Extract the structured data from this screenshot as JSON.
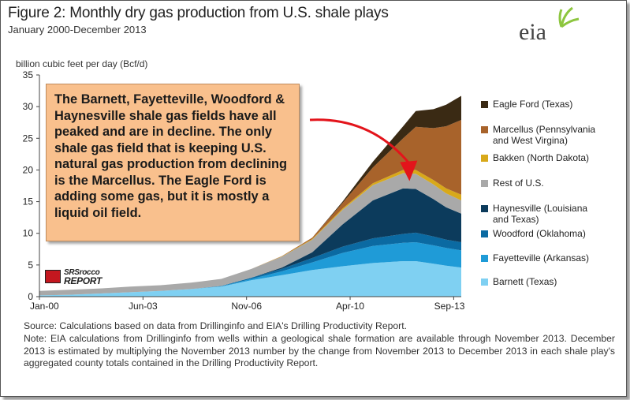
{
  "header": {
    "title": "Figure 2: Monthly dry gas production from U.S. shale plays",
    "subtitle": "January 2000-December 2013",
    "logo_text": "eia"
  },
  "callout": {
    "text": "The Barnett, Fayetteville, Woodford & Haynesville shale gas fields have all peaked and are in decline.  The only shale gas field that is keeping U.S. natural gas production from declining is the Marcellus.  The Eagle Ford is adding some gas, but it is mostly a liquid oil field."
  },
  "watermark": {
    "name": "SRSrocco",
    "report": "REPORT"
  },
  "footer": {
    "source": "Source: Calculations based on data from Drillinginfo and EIA's Drilling Productivity Report.",
    "note": "Note: EIA calculations from Drillinginfo from wells within a geological shale formation are available through November 2013. December 2013 is estimated by multiplying the November 2013 number by the change from November 2013 to December 2013 in each shale play's aggregated county totals contained in the Drilling Productivity Report."
  },
  "colors": {
    "barnett": "#7fd0f2",
    "fayetteville": "#1f9bd7",
    "woodford": "#0b6aa2",
    "haynesville": "#0c3b5c",
    "rest": "#a9a9a9",
    "bakken": "#d8a91a",
    "marcellus": "#a8632b",
    "eagleford": "#3a2a14",
    "arrow": "#e3141b",
    "callout_bg": "#f9c08d"
  },
  "chart_data": {
    "type": "area",
    "stacked": true,
    "title": "Figure 2: Monthly dry gas production from U.S. shale plays",
    "ylabel": "billion cubic feet per day (Bcf/d)",
    "xlabel": "",
    "ylim": [
      0,
      35
    ],
    "yticks": [
      0,
      5,
      10,
      15,
      20,
      25,
      30,
      35
    ],
    "xticks": [
      "Jan-00",
      "Jun-03",
      "Nov-06",
      "Apr-10",
      "Sep-13"
    ],
    "x": [
      "Jan-00",
      "Jan-01",
      "Jan-02",
      "Jan-03",
      "Jan-04",
      "Jan-05",
      "Jan-06",
      "Jan-07",
      "Jan-08",
      "Jan-09",
      "Jan-10",
      "Jan-11",
      "Jan-12",
      "Jun-12",
      "Jan-13",
      "Jun-13",
      "Dec-13"
    ],
    "series": [
      {
        "name": "Barnett (Texas)",
        "color_key": "barnett",
        "values": [
          0.2,
          0.3,
          0.5,
          0.7,
          0.9,
          1.2,
          1.6,
          2.6,
          3.4,
          4.2,
          4.8,
          5.3,
          5.6,
          5.6,
          5.2,
          4.9,
          4.6
        ]
      },
      {
        "name": "Fayetteville (Arkansas)",
        "color_key": "fayetteville",
        "values": [
          0,
          0,
          0,
          0,
          0,
          0,
          0.05,
          0.2,
          0.6,
          1.2,
          2.1,
          2.7,
          2.9,
          3.0,
          2.9,
          2.8,
          2.7
        ]
      },
      {
        "name": "Woodford (Oklahoma)",
        "color_key": "woodford",
        "values": [
          0,
          0,
          0,
          0,
          0,
          0,
          0.05,
          0.2,
          0.4,
          0.7,
          1.0,
          1.2,
          1.4,
          1.5,
          1.4,
          1.3,
          1.3
        ]
      },
      {
        "name": "Haynesville (Louisiana and Texas)",
        "color_key": "haynesville",
        "values": [
          0,
          0,
          0,
          0,
          0,
          0,
          0,
          0,
          0.2,
          0.9,
          3.5,
          6.0,
          7.2,
          6.9,
          5.9,
          5.1,
          4.5
        ]
      },
      {
        "name": "Rest of U.S.",
        "color_key": "rest",
        "values": [
          0.7,
          0.8,
          0.8,
          0.9,
          0.9,
          1.0,
          1.1,
          1.4,
          1.7,
          2.0,
          2.3,
          2.4,
          2.4,
          2.4,
          2.3,
          2.2,
          2.1
        ]
      },
      {
        "name": "Bakken (North Dakota)",
        "color_key": "bakken",
        "values": [
          0,
          0,
          0,
          0,
          0,
          0,
          0,
          0,
          0.05,
          0.1,
          0.2,
          0.3,
          0.5,
          0.6,
          0.7,
          0.8,
          0.9
        ]
      },
      {
        "name": "Marcellus (Pennsylvania and West Virgina)",
        "color_key": "marcellus",
        "values": [
          0,
          0,
          0,
          0,
          0,
          0,
          0,
          0,
          0.05,
          0.2,
          0.9,
          2.5,
          5.0,
          6.8,
          8.2,
          9.8,
          11.8
        ]
      },
      {
        "name": "Eagle Ford (Texas)",
        "color_key": "eagleford",
        "values": [
          0,
          0,
          0,
          0,
          0,
          0,
          0,
          0,
          0,
          0,
          0.2,
          0.9,
          1.9,
          2.5,
          3.0,
          3.4,
          3.8
        ]
      }
    ],
    "legend_placement": "right",
    "legend_order": [
      "Eagle Ford (Texas)",
      "Marcellus (Pennsylvania and West Virgina)",
      "Bakken (North Dakota)",
      "Rest of U.S.",
      "Haynesville (Louisiana and Texas)",
      "Woodford (Oklahoma)",
      "Fayetteville (Arkansas)",
      "Barnett (Texas)"
    ],
    "grid": false
  }
}
